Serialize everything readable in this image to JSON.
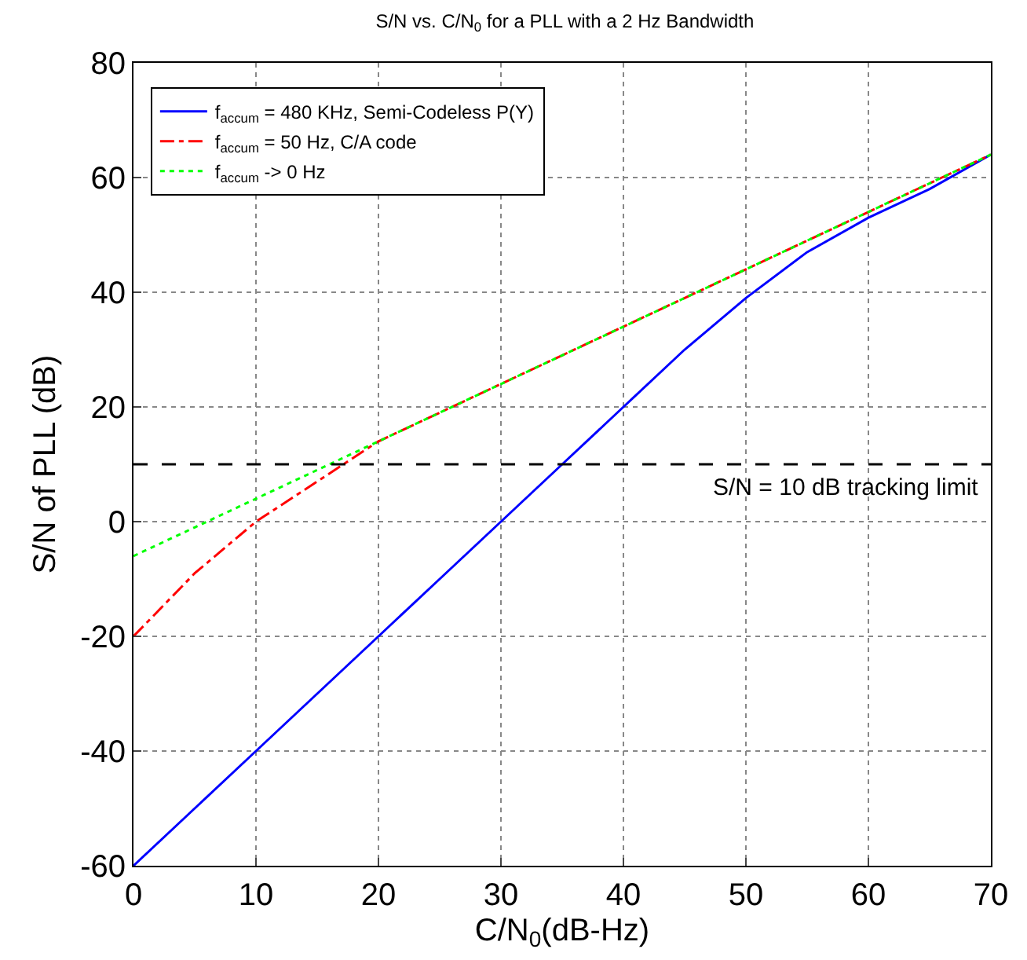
{
  "chart_data": {
    "type": "line",
    "title": "S/N vs. C/N$_{0}$ for a PLL with a 2 Hz Bandwidth",
    "xlabel": "C/N$_{0}$(dB-Hz)",
    "ylabel": "S/N of PLL (dB)",
    "x": [
      0,
      5,
      10,
      15,
      20,
      25,
      30,
      35,
      40,
      45,
      50,
      55,
      60,
      65,
      70
    ],
    "series": [
      {
        "name": "f$_{accum}$ = 480 KHz, Semi-Codeless P(Y)",
        "color": "#0000ff",
        "line_style": "solid",
        "values": [
          -60,
          -50,
          -40,
          -30,
          -20,
          -10,
          0,
          10,
          20,
          30,
          39,
          47,
          53,
          58,
          64
        ]
      },
      {
        "name": "f$_{accum}$ = 50 Hz, C/A code",
        "color": "#ff0000",
        "line_style": "dashdot",
        "values": [
          -20,
          -9,
          0,
          7,
          14,
          19,
          24,
          29,
          34,
          39,
          44,
          49,
          54,
          59,
          64
        ]
      },
      {
        "name": "f$_{accum}$ -> 0 Hz",
        "color": "#00ff00",
        "line_style": "dotted",
        "values": [
          -6,
          -1,
          4,
          9,
          14,
          19,
          24,
          29,
          34,
          39,
          44,
          49,
          54,
          59,
          64
        ]
      }
    ],
    "xlim": [
      0,
      70
    ],
    "xticks": [
      0,
      10,
      20,
      30,
      40,
      50,
      60,
      70
    ],
    "ylim": [
      -60,
      80
    ],
    "yticks": [
      -60,
      -40,
      -20,
      0,
      20,
      40,
      60,
      80
    ],
    "ref_lines": [
      {
        "axis": "y",
        "value": 10,
        "label": "S/N = 10 dB tracking limit",
        "color": "#000000",
        "line_style": "dashed"
      }
    ],
    "grid": true,
    "legend": "top left",
    "marker": "none"
  }
}
